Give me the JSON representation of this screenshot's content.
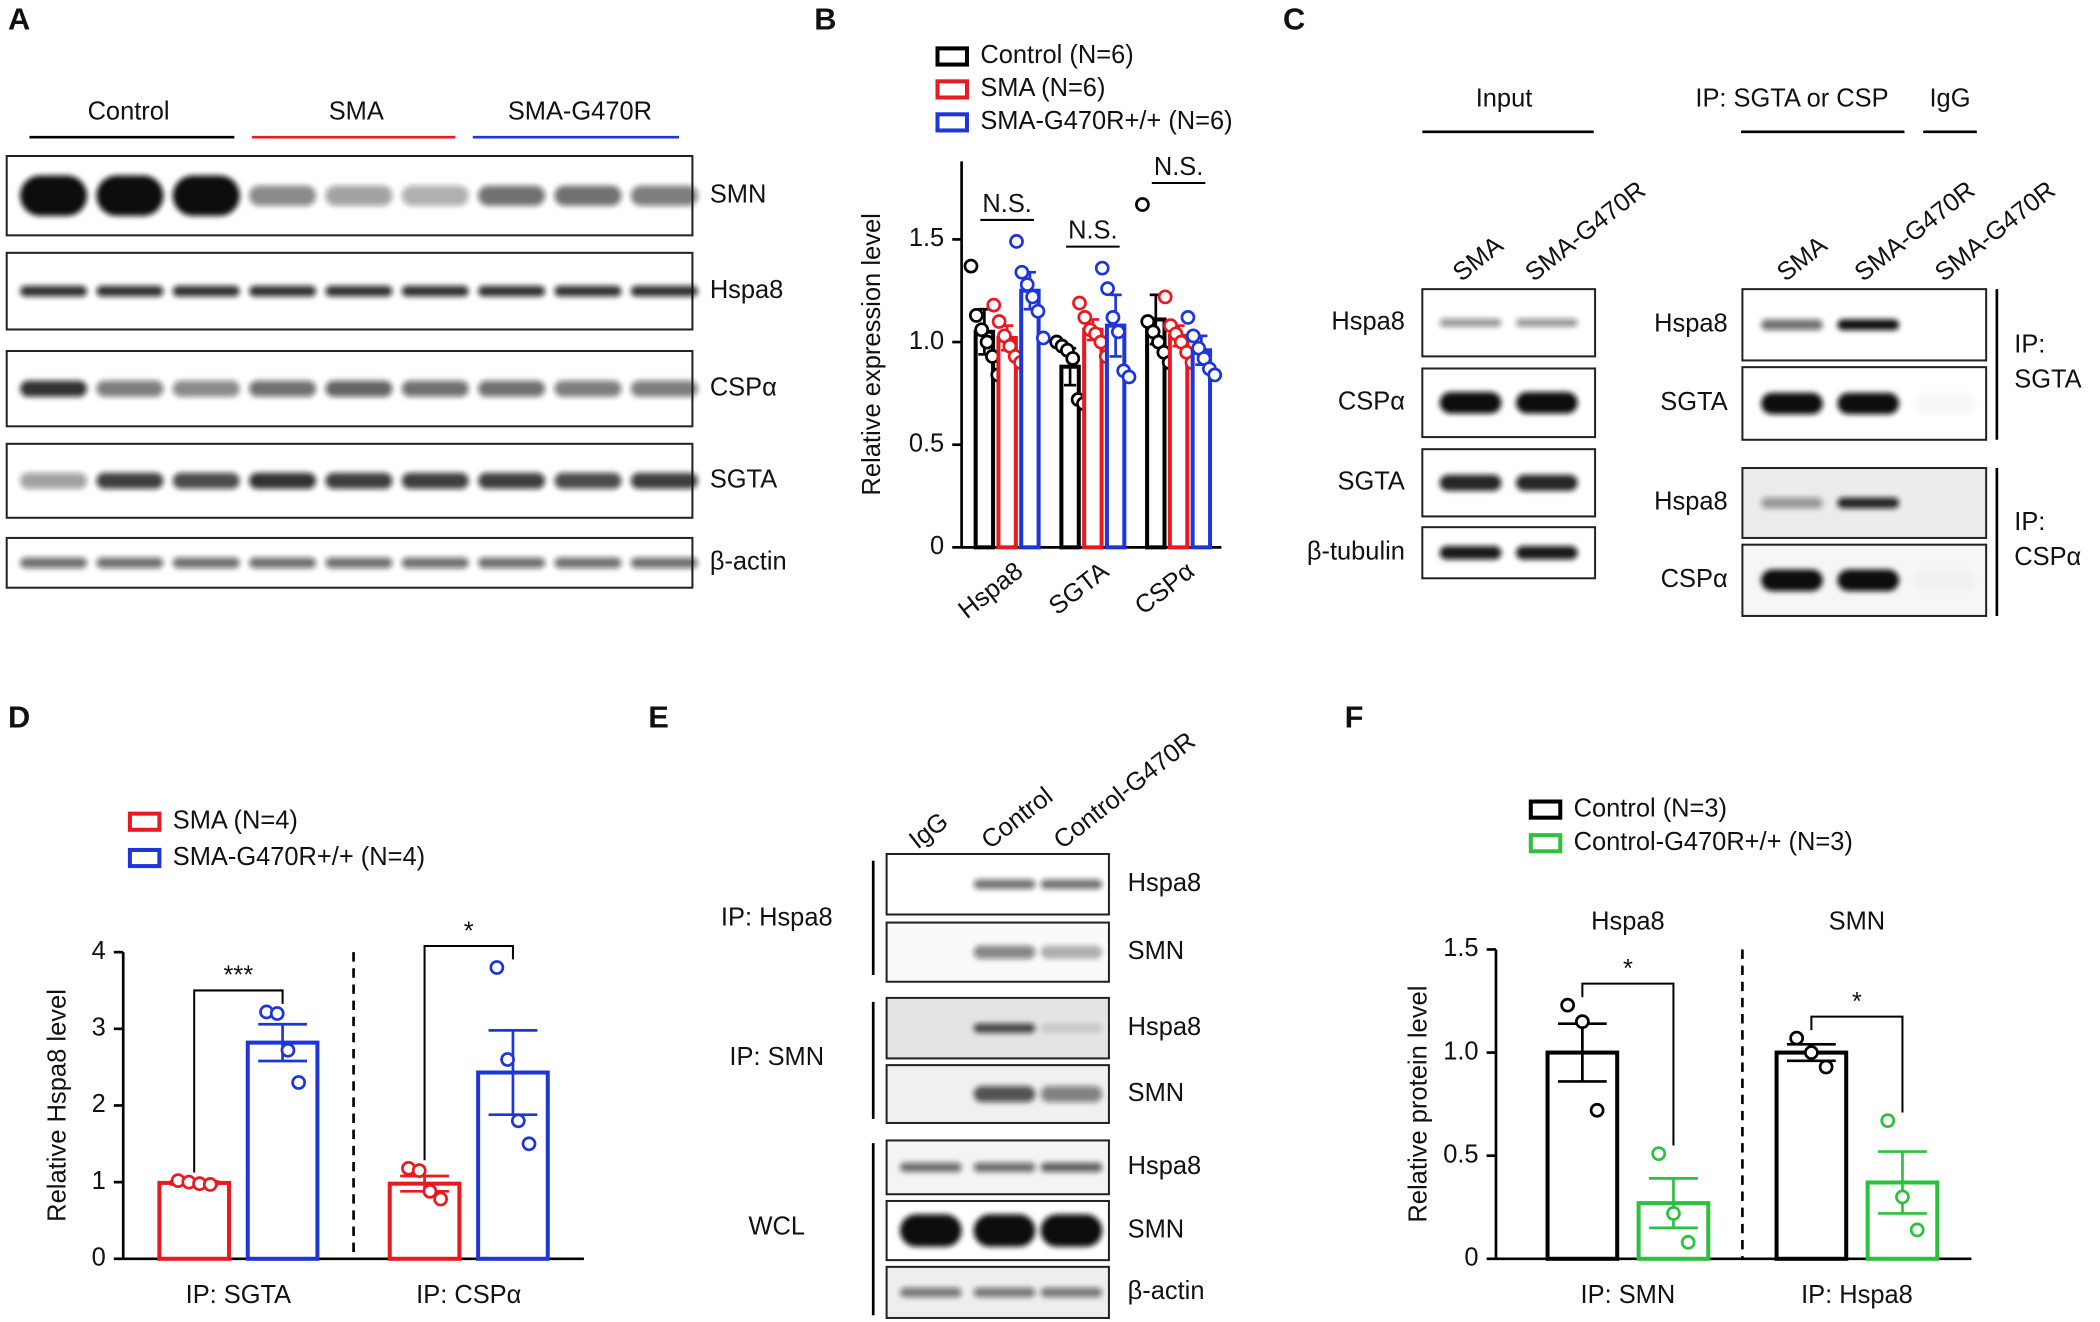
{
  "blots": {
    "A": {
      "label": "A",
      "groups": [
        {
          "name": "Control",
          "color": "#000000"
        },
        {
          "name": "SMA",
          "color": "#e8191f"
        },
        {
          "name": "SMA-G470R",
          "color": "#1e36d8"
        }
      ],
      "rows": [
        "SMN",
        "Hspa8",
        "CSPα",
        "SGTA",
        "β-actin"
      ]
    },
    "C": {
      "label": "C",
      "headers": [
        "Input",
        "IP: SGTA or CSP",
        "IgG"
      ],
      "lanes_left": [
        {
          "name": "SMA",
          "color": "#e8191f"
        },
        {
          "name": "SMA-G470R",
          "color": "#1e36d8"
        }
      ],
      "lanes_right": [
        {
          "name": "SMA",
          "color": "#e8191f"
        },
        {
          "name": "SMA-G470R",
          "color": "#1e36d8"
        },
        {
          "name": "SMA-G470R",
          "color": "#1e36d8"
        }
      ],
      "rows_left": [
        "Hspa8",
        "CSPα",
        "SGTA",
        "β-tubulin"
      ],
      "rows_right": [
        "Hspa8",
        "SGTA",
        "Hspa8",
        "CSPα"
      ],
      "side_labels": [
        [
          "IP:",
          "SGTA"
        ],
        [
          "IP:",
          "CSPα"
        ]
      ]
    },
    "E": {
      "label": "E",
      "lanes": [
        "IgG",
        "Control",
        "Control-G470R"
      ],
      "groups": [
        "IP: Hspa8",
        "IP: SMN",
        "WCL"
      ],
      "rows": [
        "Hspa8",
        "SMN",
        "Hspa8",
        "SMN",
        "Hspa8",
        "SMN",
        "β-actin"
      ]
    }
  },
  "chart_data": [
    {
      "type": "bar",
      "panel": "B",
      "ylabel": "Relative expression level",
      "categories": [
        "Hspa8",
        "SGTA",
        "CSPα"
      ],
      "ylim": [
        0,
        1.88
      ],
      "yticks": [
        0,
        0.5,
        {
          "value": 1,
          "label": "1.0"
        },
        1.5
      ],
      "series": [
        {
          "name": "Control (N=6)",
          "color": "#000000",
          "values": [
            1.05,
            0.88,
            1.11
          ],
          "errors": [
            0.11,
            0.09,
            0.12
          ],
          "points": [
            [
              1.37,
              1.13,
              1.06,
              1.0,
              0.93,
              0.84
            ],
            [
              1.0,
              0.98,
              0.96,
              0.92,
              0.72,
              0.7
            ],
            [
              1.67,
              1.1,
              1.05,
              1.0,
              0.95,
              0.9
            ]
          ]
        },
        {
          "name": "SMA (N=6)",
          "color": "#e8191f",
          "values": [
            1.02,
            1.06,
            1.03
          ],
          "errors": [
            0.06,
            0.05,
            0.05
          ],
          "points": [
            [
              1.18,
              1.1,
              1.03,
              0.98,
              0.93,
              0.9
            ],
            [
              1.19,
              1.12,
              1.06,
              1.04,
              1.0,
              0.93
            ],
            [
              1.22,
              1.08,
              1.04,
              1.0,
              0.95,
              0.9
            ]
          ]
        },
        {
          "name": "SMA-G470R+/+ (N=6)",
          "color": "#1e36d8",
          "values": [
            1.25,
            1.08,
            0.96
          ],
          "errors": [
            0.09,
            0.15,
            0.07
          ],
          "points": [
            [
              1.49,
              1.34,
              1.28,
              1.22,
              1.15,
              1.02
            ],
            [
              1.36,
              1.26,
              1.12,
              1.05,
              0.86,
              0.83
            ],
            [
              1.12,
              1.03,
              0.97,
              0.92,
              0.87,
              0.84
            ]
          ]
        }
      ],
      "significance": [
        "N.S.",
        "N.S.",
        "N.S."
      ]
    },
    {
      "type": "bar",
      "panel": "D",
      "ylabel": "Relative Hspa8 level",
      "categories": [
        "IP: SGTA",
        "IP: CSPα"
      ],
      "ylim": [
        0,
        4
      ],
      "yticks": [
        0,
        1,
        2,
        3,
        4
      ],
      "divider": "dashed",
      "series": [
        {
          "name": "SMA (N=4)",
          "color": "#e8191f",
          "values": [
            0.99,
            0.98
          ],
          "errors": [
            0.02,
            0.1
          ],
          "points": [
            [
              1.02,
              1.0,
              0.98,
              0.97
            ],
            [
              1.18,
              1.15,
              0.88,
              0.78
            ]
          ]
        },
        {
          "name": "SMA-G470R+/+ (N=4)",
          "color": "#1e36d8",
          "values": [
            2.82,
            2.43
          ],
          "errors": [
            0.24,
            0.55
          ],
          "points": [
            [
              3.22,
              3.2,
              2.72,
              2.3
            ],
            [
              3.8,
              2.6,
              1.8,
              1.5
            ]
          ]
        }
      ],
      "significance": [
        "***",
        "*"
      ]
    },
    {
      "type": "bar",
      "panel": "F",
      "ylabel": "Relative protein level",
      "categories": [
        "IP: SMN",
        "IP: Hspa8"
      ],
      "group_titles": [
        "Hspa8",
        "SMN"
      ],
      "ylim": [
        0,
        1.5
      ],
      "yticks": [
        0,
        0.5,
        {
          "value": 1,
          "label": "1.0"
        },
        1.5
      ],
      "divider": "dashed",
      "series": [
        {
          "name": "Control (N=3)",
          "color": "#000000",
          "values": [
            1.0,
            1.0
          ],
          "errors": [
            0.14,
            0.04
          ],
          "points": [
            [
              1.23,
              1.15,
              0.72
            ],
            [
              1.07,
              1.0,
              0.93
            ]
          ]
        },
        {
          "name": "Control-G470R+/+ (N=3)",
          "color": "#2bc13c",
          "values": [
            0.27,
            0.37
          ],
          "errors": [
            0.12,
            0.15
          ],
          "points": [
            [
              0.51,
              0.22,
              0.08
            ],
            [
              0.67,
              0.3,
              0.14
            ]
          ]
        }
      ],
      "significance": [
        "*",
        "*"
      ]
    }
  ]
}
